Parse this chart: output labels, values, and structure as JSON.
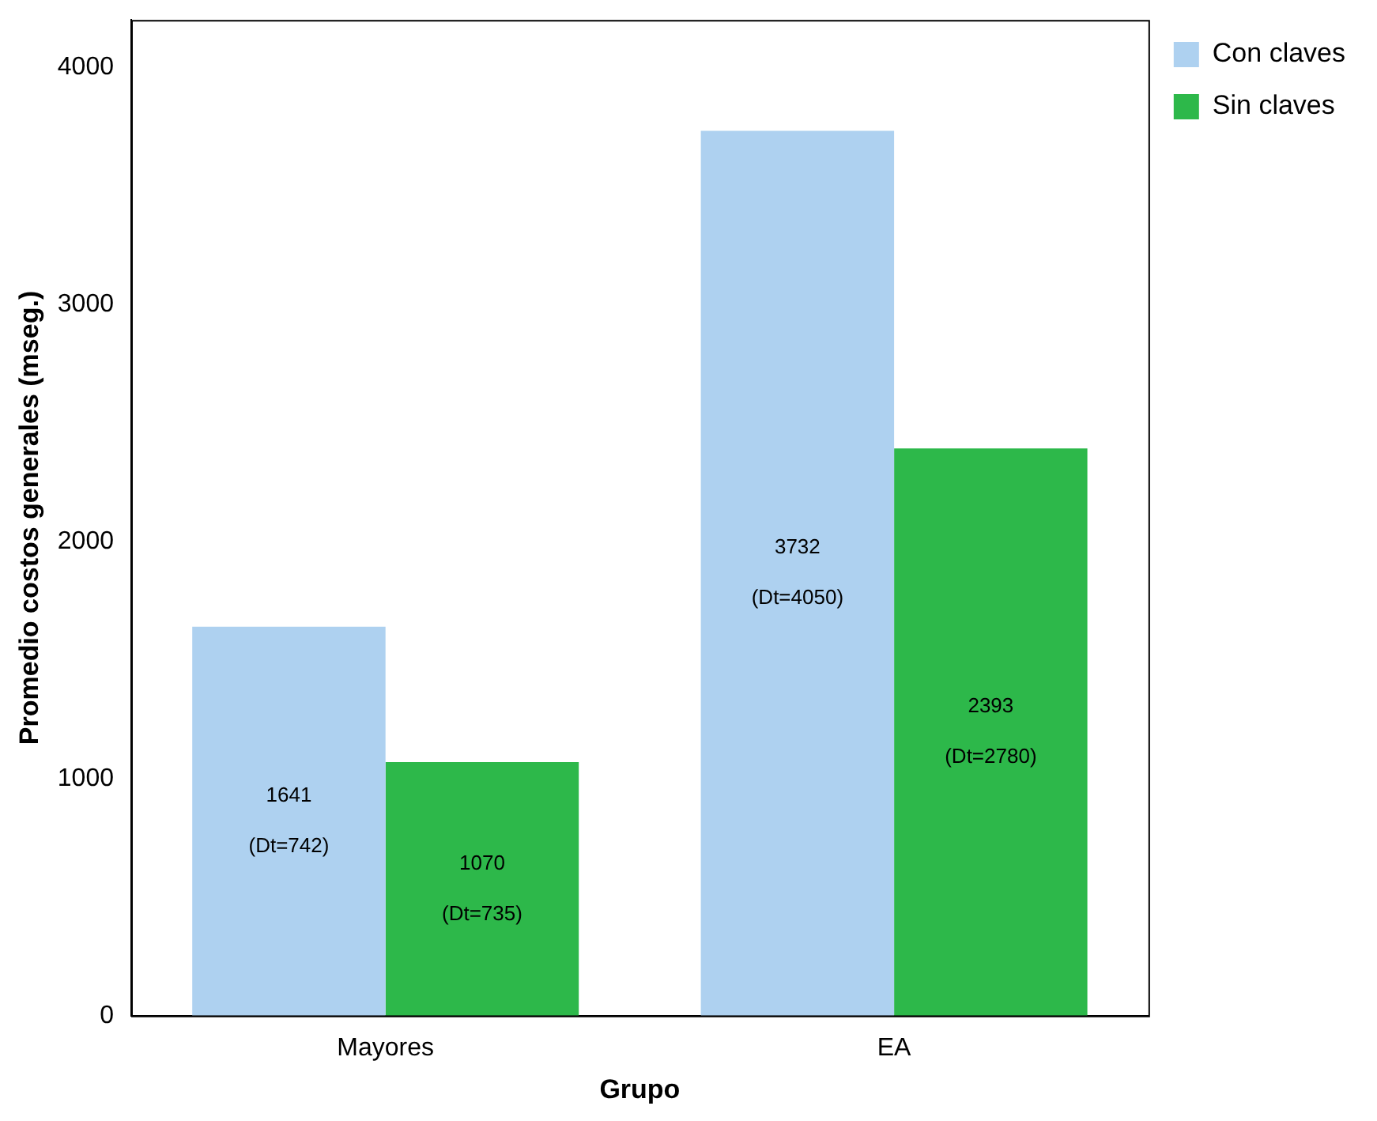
{
  "chart_data": {
    "type": "bar",
    "xlabel": "Grupo",
    "ylabel": "Promedio costos generales (mseg.)",
    "categories": [
      "Mayores",
      "EA"
    ],
    "series": [
      {
        "name": "Con claves",
        "color": "#aed1f0",
        "values": [
          1641,
          3732
        ],
        "value_labels": [
          "1641\n(Dt=742)",
          "3732\n(Dt=4050)"
        ]
      },
      {
        "name": "Sin claves",
        "color": "#2db84a",
        "values": [
          1070,
          2393
        ],
        "value_labels": [
          "1070\n(Dt=735)",
          "2393\n(Dt=2780)"
        ]
      }
    ],
    "ylim": [
      0,
      4200
    ],
    "yticks": [
      0,
      1000,
      2000,
      3000,
      4000
    ],
    "grid": false,
    "legend": "top right"
  }
}
